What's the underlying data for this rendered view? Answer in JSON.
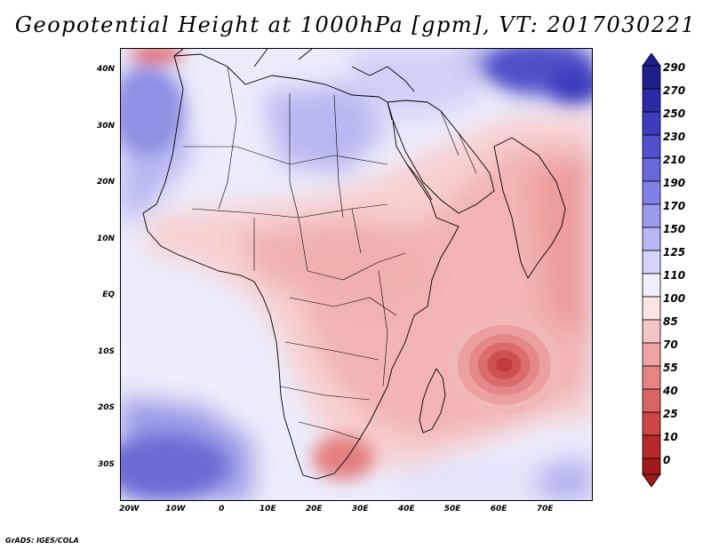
{
  "title": "Geopotential Height at 1000hPa [gpm], VT: 2017030221",
  "credit": "GrADS: IGES/COLA",
  "map": {
    "variable": "Geopotential Height",
    "level": "1000hPa",
    "units": "gpm",
    "valid_time": "2017030221",
    "lat_range": [
      -36,
      44
    ],
    "lon_range": [
      -22,
      80
    ],
    "lat_ticks": [
      {
        "value": 40,
        "label": "40N"
      },
      {
        "value": 30,
        "label": "30N"
      },
      {
        "value": 20,
        "label": "20N"
      },
      {
        "value": 10,
        "label": "10N"
      },
      {
        "value": 0,
        "label": "EQ"
      },
      {
        "value": -10,
        "label": "10S"
      },
      {
        "value": -20,
        "label": "20S"
      },
      {
        "value": -30,
        "label": "30S"
      }
    ],
    "lon_ticks": [
      {
        "value": -20,
        "label": "20W"
      },
      {
        "value": -10,
        "label": "10W"
      },
      {
        "value": 0,
        "label": "0"
      },
      {
        "value": 10,
        "label": "10E"
      },
      {
        "value": 20,
        "label": "20E"
      },
      {
        "value": 30,
        "label": "30E"
      },
      {
        "value": 40,
        "label": "40E"
      },
      {
        "value": 50,
        "label": "50E"
      },
      {
        "value": 60,
        "label": "60E"
      },
      {
        "value": 70,
        "label": "70E"
      }
    ]
  },
  "colorbar": {
    "labels": [
      "290",
      "270",
      "250",
      "230",
      "210",
      "190",
      "170",
      "150",
      "125",
      "110",
      "100",
      "85",
      "70",
      "55",
      "40",
      "25",
      "10",
      "0"
    ],
    "colors": [
      "#1e1e8c",
      "#2a2aa6",
      "#3c3cbe",
      "#5050d0",
      "#6868dc",
      "#8080e6",
      "#9c9cee",
      "#b8b8f4",
      "#d4d4fa",
      "#f0f0fc",
      "#fde4e4",
      "#f6c4c4",
      "#eea4a4",
      "#e48484",
      "#d86464",
      "#cc4444",
      "#b82828",
      "#a01818"
    ]
  },
  "features": {
    "indian_ocean_low_center": {
      "lon": 61,
      "lat": -12
    }
  }
}
